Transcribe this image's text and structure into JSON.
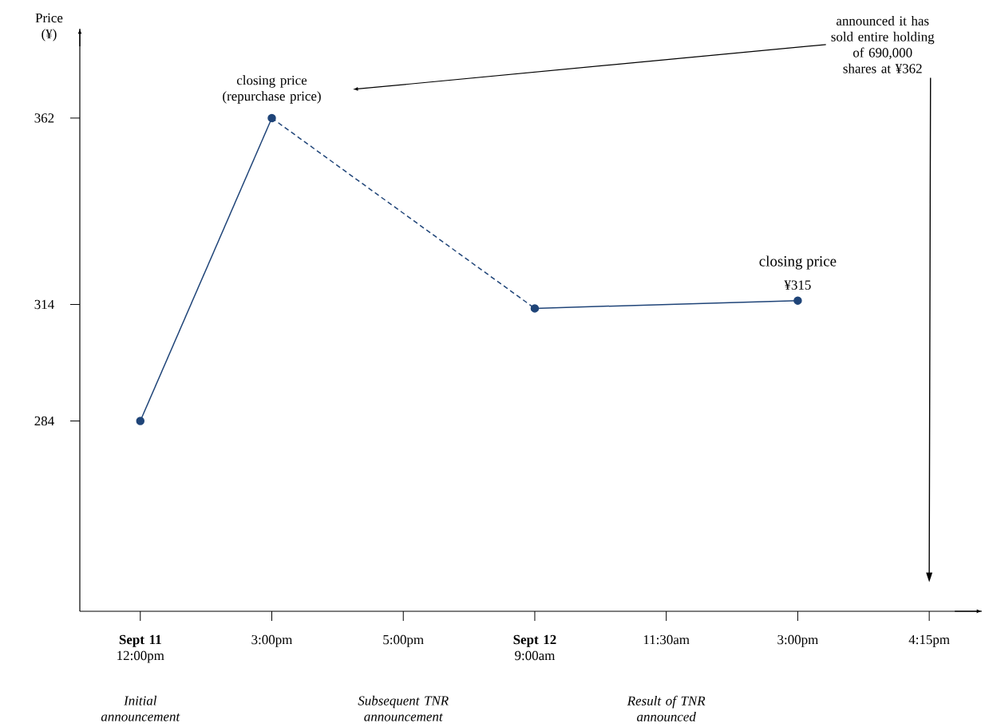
{
  "chart_data": {
    "type": "line",
    "ylabel": "Price (¥)",
    "categories": [
      "**Sept 11** 12:00pm",
      "3:00pm",
      "5:00pm",
      "**Sept 12** 9:00am",
      "11:30am",
      "3:00pm",
      "4:15pm"
    ],
    "ylim": [
      235,
      385
    ],
    "yticks": [
      284,
      314,
      362
    ],
    "marker": "circle",
    "series": [
      {
        "color": "#1f4478",
        "line_style": "solid",
        "values": [
          284,
          362,
          null,
          null,
          null,
          null,
          null
        ]
      },
      {
        "color": "#1f4478",
        "line_style": "dashed",
        "marker": "none",
        "values": [
          null,
          362,
          null,
          313,
          null,
          null,
          null
        ]
      },
      {
        "color": "#1f4478",
        "line_style": "solid",
        "values": [
          null,
          null,
          null,
          313,
          null,
          315,
          null
        ],
        "value_labels": [
          null,
          null,
          null,
          null,
          null,
          "¥315",
          null
        ]
      }
    ],
    "annotations": [
      "closing price (repurchase price)",
      "closing price",
      "announced it has sold entire holding of 690,000 shares at ¥362",
      "Initial announcement",
      "Subsequent TNR announcement",
      "Result of TNR announced"
    ]
  }
}
